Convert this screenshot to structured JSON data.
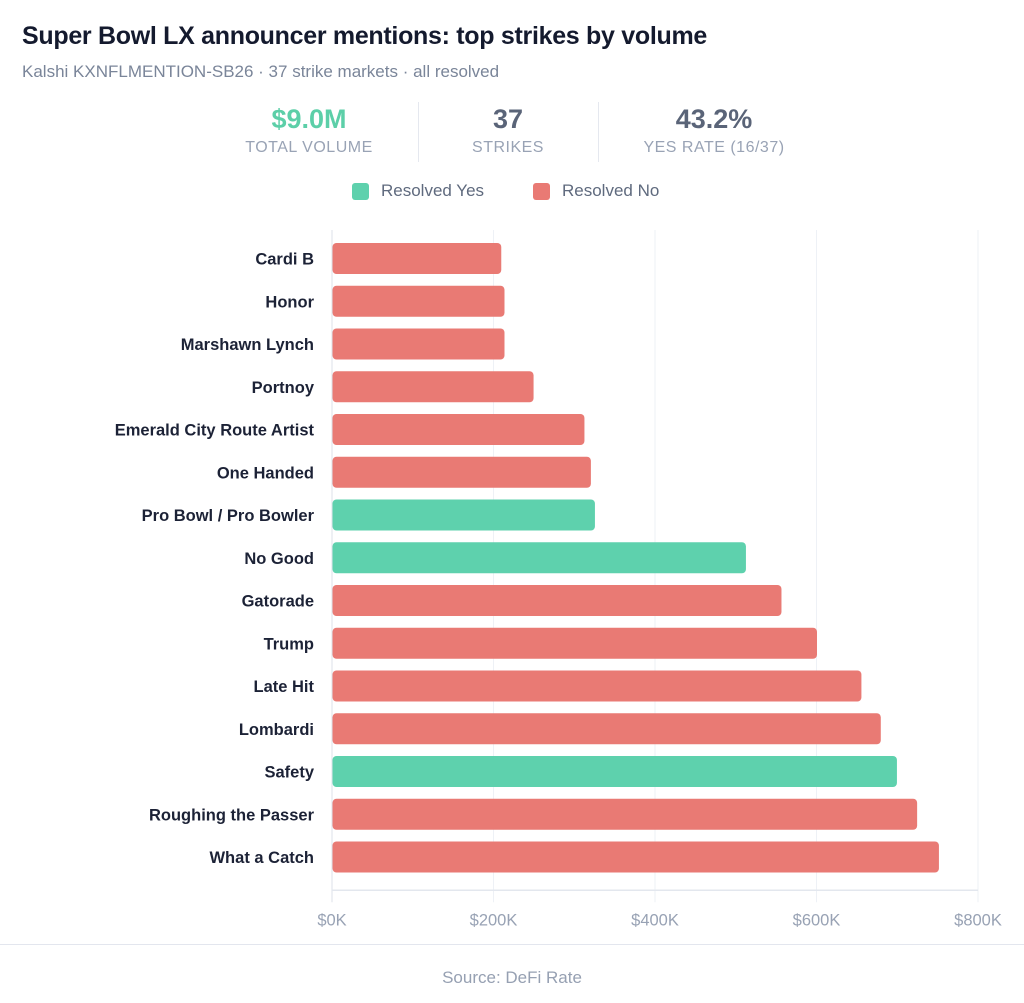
{
  "header": {
    "title": "Super Bowl LX announcer mentions: top strikes by volume",
    "subtitle": "Kalshi KXNFLMENTION-SB26 · 37 strike markets · all resolved"
  },
  "kpis": [
    {
      "value": "$9.0M",
      "label": "TOTAL VOLUME",
      "color": "#5ccfa8"
    },
    {
      "value": "37",
      "label": "STRIKES",
      "color": "#5a6478"
    },
    {
      "value": "43.2%",
      "label": "YES RATE (16/37)",
      "color": "#5a6478"
    }
  ],
  "legend": [
    {
      "label": "Resolved Yes",
      "color": "#5ed1ad"
    },
    {
      "label": "Resolved No",
      "color": "#e97a74"
    }
  ],
  "chart_data": {
    "type": "bar",
    "orientation": "horizontal",
    "title": "Super Bowl LX announcer mentions: top strikes by volume",
    "xlabel": "",
    "ylabel": "",
    "xlim": [
      0,
      800000
    ],
    "xticks": [
      0,
      200000,
      400000,
      600000,
      800000
    ],
    "xtick_labels": [
      "$0K",
      "$200K",
      "$400K",
      "$600K",
      "$800K"
    ],
    "grid": true,
    "legend_position": "top-center",
    "categories": [
      "Cardi B",
      "Honor",
      "Marshawn Lynch",
      "Portnoy",
      "Emerald City Route Artist",
      "One Handed",
      "Pro Bowl / Pro Bowler",
      "No Good",
      "Gatorade",
      "Trump",
      "Late Hit",
      "Lombardi",
      "Safety",
      "Roughing the Passer",
      "What a Catch"
    ],
    "values": [
      209000,
      213000,
      213000,
      249000,
      312000,
      320000,
      325000,
      512000,
      556000,
      600000,
      655000,
      679000,
      699000,
      724000,
      751000
    ],
    "outcomes": [
      "No",
      "No",
      "No",
      "No",
      "No",
      "No",
      "Yes",
      "Yes",
      "No",
      "No",
      "No",
      "No",
      "Yes",
      "No",
      "No"
    ],
    "colors": {
      "Yes": "#5ed1ad",
      "No": "#e97a74"
    }
  },
  "footer": {
    "source": "Source: DeFi Rate"
  }
}
